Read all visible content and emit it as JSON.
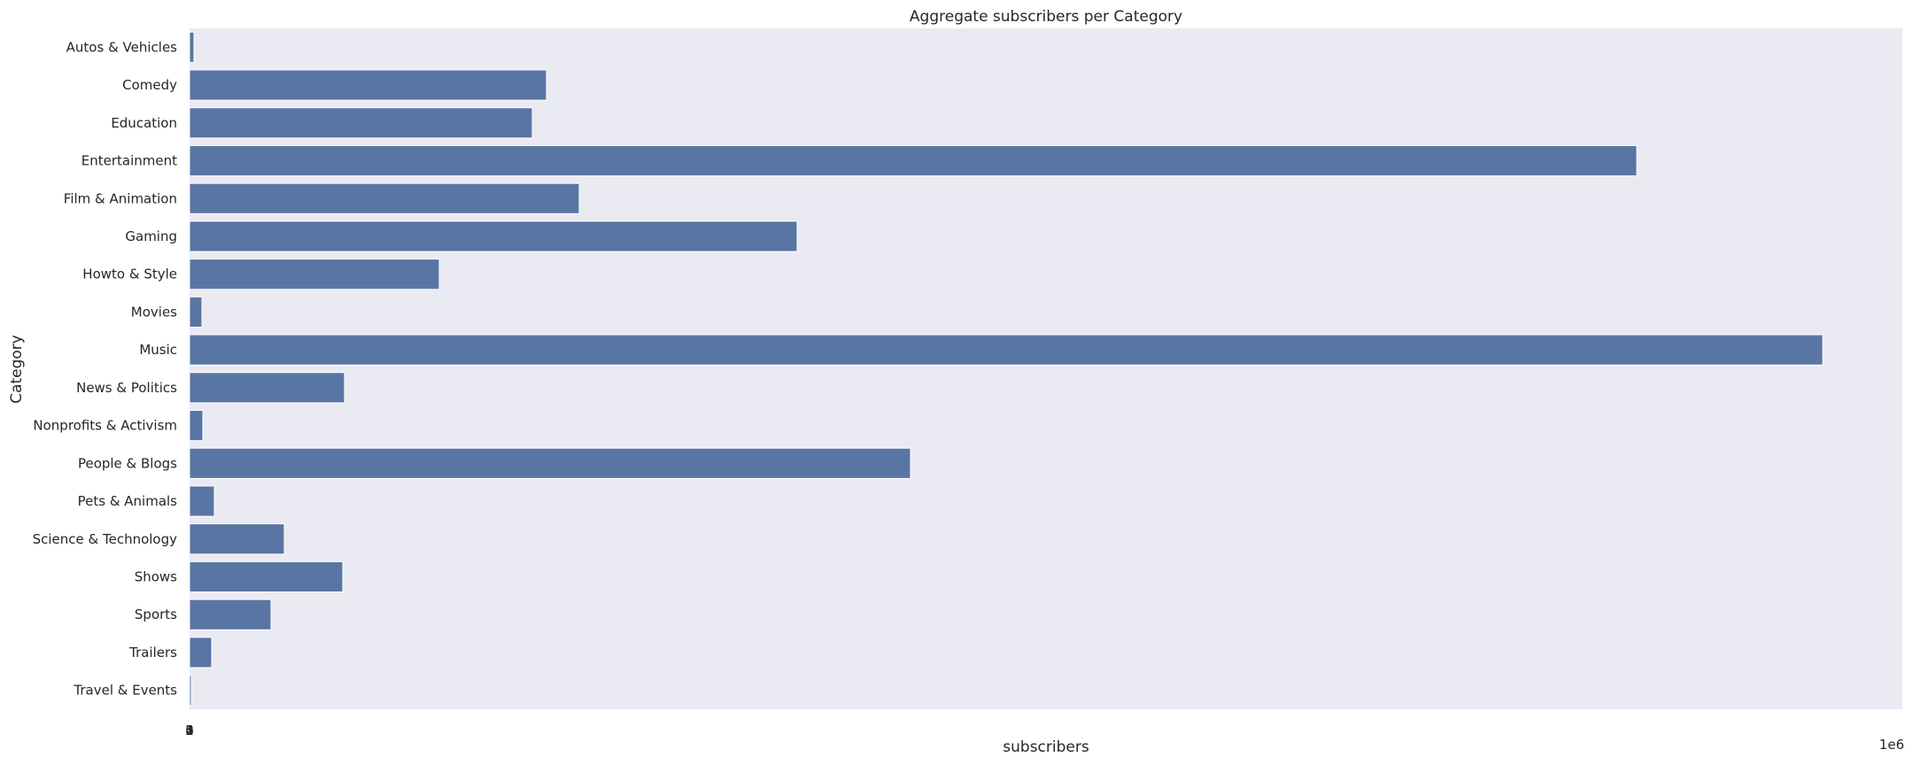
{
  "chart_data": {
    "type": "bar",
    "orientation": "horizontal",
    "title": "Aggregate subscribers per Category",
    "xlabel": "subscribers",
    "ylabel": "Category",
    "x_offset_label": "1e6",
    "x_tick_labels": [
      "0",
      "1",
      "2",
      "3",
      "4"
    ],
    "grid": false,
    "bar_color": "#5975a4",
    "background_color": "#eaeaf2",
    "categories": [
      "Autos & Vehicles",
      "Comedy",
      "Education",
      "Entertainment",
      "Film & Animation",
      "Gaming",
      "Howto & Style",
      "Movies",
      "Music",
      "News & Politics",
      "Nonprofits & Activism",
      "People & Blogs",
      "Pets & Animals",
      "Science & Technology",
      "Shows",
      "Sports",
      "Trailers",
      "Travel & Events"
    ],
    "values": [
      5,
      403,
      387,
      1634,
      440,
      686,
      282,
      14,
      1844,
      175,
      15,
      814,
      28,
      107,
      173,
      92,
      25,
      2
    ],
    "xlim": [
      0,
      1934
    ]
  }
}
